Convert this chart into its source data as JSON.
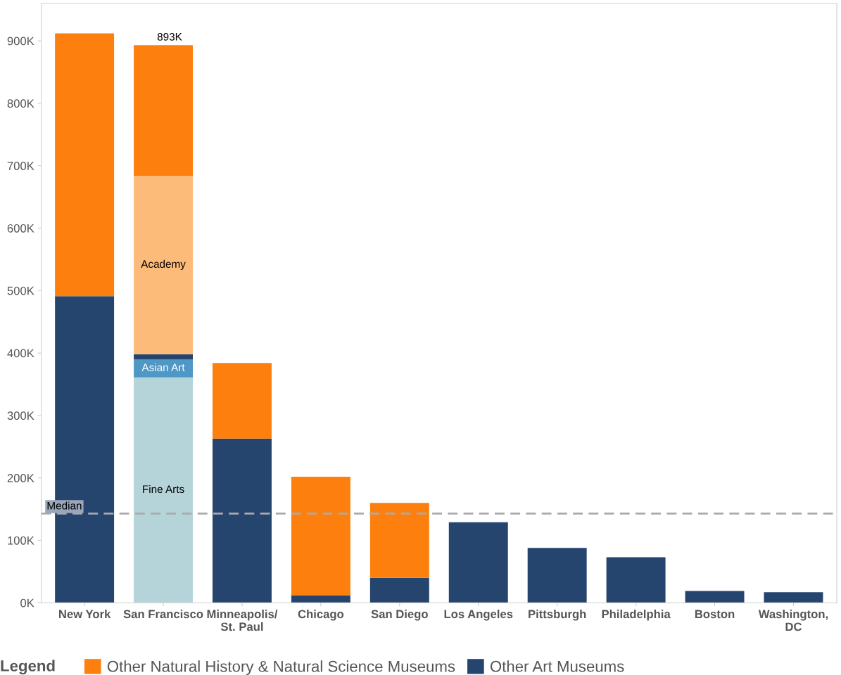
{
  "chart_data": {
    "type": "bar",
    "stacked": true,
    "categories": [
      "New York",
      "San Francisco",
      "Minneapolis/\nSt. Paul",
      "Chicago",
      "San Diego",
      "Los Angeles",
      "Pittsburgh",
      "Philadelphia",
      "Boston",
      "Washington,\nDC"
    ],
    "series": [
      {
        "name": "Fine Arts",
        "color": "#b5d4d9",
        "values": [
          null,
          361,
          null,
          null,
          null,
          null,
          null,
          null,
          null,
          null
        ]
      },
      {
        "name": "Asian Art",
        "color": "#4f98c6",
        "values": [
          null,
          29,
          null,
          null,
          null,
          null,
          null,
          null,
          null,
          null
        ]
      },
      {
        "name": "Other Art Museums",
        "color": "#26456e",
        "values": [
          491,
          8,
          263,
          12,
          40,
          129,
          88,
          73,
          19,
          17
        ]
      },
      {
        "name": "Academy",
        "color": "#fdbb7a",
        "values": [
          null,
          286,
          null,
          null,
          null,
          null,
          null,
          null,
          null,
          null
        ]
      },
      {
        "name": "Other Natural History & Natural Science Museums",
        "color": "#fd7f0e",
        "values": [
          421,
          209,
          121,
          190,
          120,
          null,
          null,
          null,
          null,
          null
        ]
      }
    ],
    "totals": [
      null,
      "893K",
      null,
      null,
      null,
      null,
      null,
      null,
      null,
      null
    ],
    "ylim": [
      0,
      960
    ],
    "yticks": [
      {
        "value": 0,
        "label": "0K"
      },
      {
        "value": 100,
        "label": "100K"
      },
      {
        "value": 200,
        "label": "200K"
      },
      {
        "value": 300,
        "label": "300K"
      },
      {
        "value": 400,
        "label": "400K"
      },
      {
        "value": 500,
        "label": "500K"
      },
      {
        "value": 600,
        "label": "600K"
      },
      {
        "value": 700,
        "label": "700K"
      },
      {
        "value": 800,
        "label": "800K"
      },
      {
        "value": 900,
        "label": "900K"
      }
    ],
    "ref_lines": [
      {
        "axis": "y",
        "value": 143,
        "label": "Median",
        "color": "#aaaaaa",
        "line_style": "dashed"
      }
    ],
    "legend": "bottom",
    "legend_title": "Legend",
    "grid": false
  }
}
